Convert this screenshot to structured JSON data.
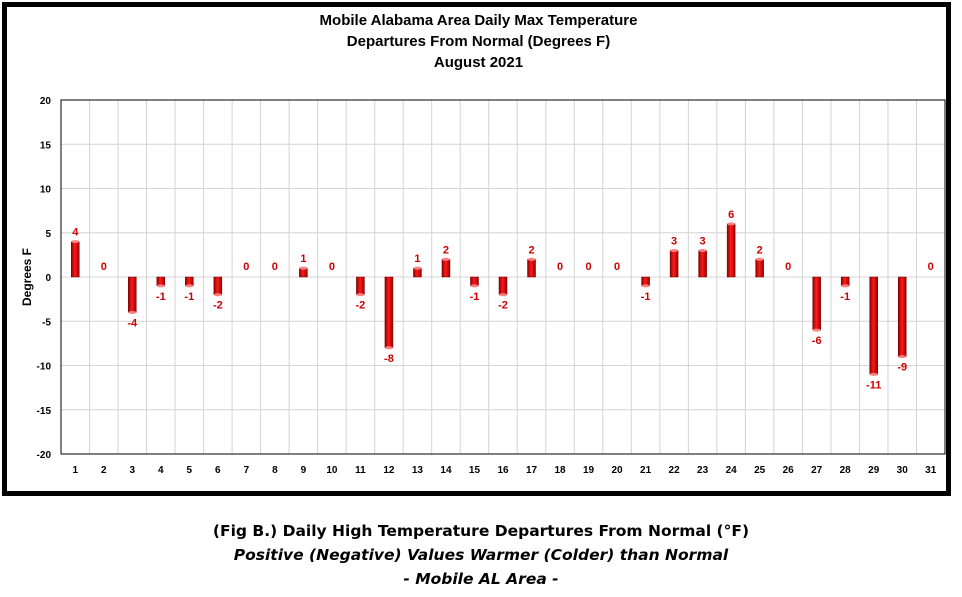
{
  "chart_data": {
    "type": "bar",
    "title_lines": [
      "Mobile Alabama Area Daily Max Temperature",
      "Departures From Normal (Degrees F)",
      "August 2021"
    ],
    "xlabel": "",
    "ylabel": "Degrees F",
    "ylim": [
      -20,
      20
    ],
    "yticks": [
      20,
      15,
      10,
      5,
      0,
      -5,
      -10,
      -15,
      -20
    ],
    "categories": [
      "1",
      "2",
      "3",
      "4",
      "5",
      "6",
      "7",
      "8",
      "9",
      "10",
      "11",
      "12",
      "13",
      "14",
      "15",
      "16",
      "17",
      "18",
      "19",
      "20",
      "21",
      "22",
      "23",
      "24",
      "25",
      "26",
      "27",
      "28",
      "29",
      "30",
      "31"
    ],
    "values": [
      4,
      0,
      -4,
      -1,
      -1,
      -2,
      0,
      0,
      1,
      0,
      -2,
      -8,
      1,
      2,
      -1,
      -2,
      2,
      0,
      0,
      0,
      -1,
      3,
      3,
      6,
      2,
      0,
      -6,
      -1,
      -11,
      -9,
      0
    ],
    "bar_color": "#e00000",
    "label_color": "#cc0000",
    "grid": true,
    "legend": "none"
  },
  "caption": {
    "line1": "(Fig B.) Daily High Temperature Departures From Normal (°F)",
    "line2": "Positive (Negative) Values Warmer (Colder) than Normal",
    "line3": "- Mobile AL Area -"
  }
}
